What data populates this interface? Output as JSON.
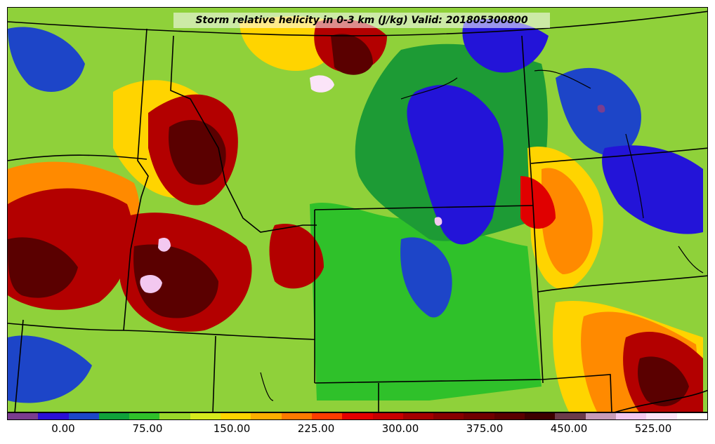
{
  "title": "Storm relative helicity in 0-3 km (J/kg) Valid: 201805300800",
  "colorbar": {
    "colors": [
      "#7a3d8f",
      "#2b0fd6",
      "#1c47c9",
      "#10a23a",
      "#2fc12a",
      "#9ad82a",
      "#d6ea1d",
      "#ffd400",
      "#ffae00",
      "#ff7a00",
      "#ff3d00",
      "#e30000",
      "#c80000",
      "#a40000",
      "#870000",
      "#700000",
      "#5a0000",
      "#3d0000",
      "#6b3a4a",
      "#c79bb7",
      "#f3c8f0",
      "#fbe4f8",
      "#ffffff"
    ],
    "tick_labels": [
      "0.00",
      "75.00",
      "150.00",
      "225.00",
      "300.00",
      "375.00",
      "450.00",
      "525.00"
    ]
  },
  "map": {
    "palette": {
      "darkred": "#5a0000",
      "red": "#b30000",
      "brightred": "#e00000",
      "orange": "#ff8a00",
      "yellow": "#ffd400",
      "yellowgreen": "#c6e52a",
      "lightgreen": "#4ec72e",
      "green": "#1d9b35",
      "blue": "#2314d8",
      "medblue": "#1d45c8",
      "pink": "#f3c8f0",
      "purple": "#7a3d8f"
    }
  }
}
